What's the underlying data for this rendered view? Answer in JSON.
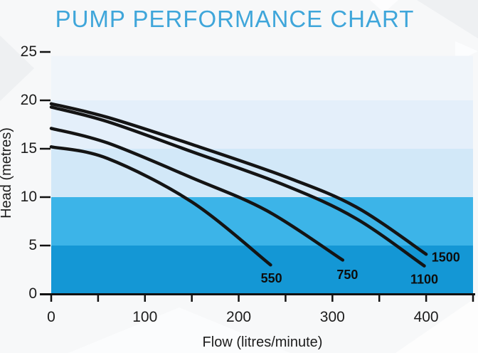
{
  "chart_data": {
    "type": "line",
    "title": "PUMP PERFORMANCE CHART",
    "title_color": "#3fa6da",
    "xlabel": "Flow (litres/minute)",
    "ylabel": "Head (metres)",
    "xlim": [
      0,
      450
    ],
    "ylim": [
      0,
      25
    ],
    "grid": false,
    "legend_position": "inline-curve-labels",
    "x_ticks": [
      0,
      50,
      100,
      150,
      200,
      250,
      300,
      350,
      400,
      450
    ],
    "x_tick_labels": [
      0,
      100,
      200,
      300,
      400
    ],
    "y_ticks": [
      0,
      5,
      10,
      15,
      20,
      25
    ],
    "axis_color": "#111111",
    "curve_color": "#141414",
    "bands": [
      {
        "from": 0,
        "to": 5,
        "color": "#1497d5",
        "name": "band-0-5"
      },
      {
        "from": 5,
        "to": 10,
        "color": "#3cb4e8",
        "name": "band-5-10"
      },
      {
        "from": 10,
        "to": 15,
        "color": "#d2e8f8",
        "name": "band-10-15"
      },
      {
        "from": 15,
        "to": 20,
        "color": "#e4effa",
        "name": "band-15-20"
      },
      {
        "from": 20,
        "to": 24.6,
        "color": "#f0f5fa",
        "name": "band-20-25"
      }
    ],
    "series": [
      {
        "name": "550",
        "points": [
          [
            0,
            15.2
          ],
          [
            60,
            14.0
          ],
          [
            150,
            9.5
          ],
          [
            234,
            3.0
          ]
        ],
        "label_at": [
          235,
          1.6
        ]
      },
      {
        "name": "750",
        "points": [
          [
            0,
            17.1
          ],
          [
            60,
            15.6
          ],
          [
            150,
            12.0
          ],
          [
            230,
            8.6
          ],
          [
            311,
            3.5
          ]
        ],
        "label_at": [
          316,
          2.0
        ]
      },
      {
        "name": "1100",
        "points": [
          [
            0,
            19.3
          ],
          [
            60,
            17.8
          ],
          [
            150,
            14.7
          ],
          [
            250,
            11.2
          ],
          [
            325,
            7.8
          ],
          [
            398,
            2.9
          ]
        ],
        "label_at": [
          398,
          1.5
        ]
      },
      {
        "name": "1500",
        "points": [
          [
            0,
            19.65
          ],
          [
            60,
            18.25
          ],
          [
            150,
            15.45
          ],
          [
            250,
            12.1
          ],
          [
            325,
            9.0
          ],
          [
            400,
            4.1
          ]
        ],
        "label_at": [
          421,
          3.8
        ]
      }
    ]
  }
}
